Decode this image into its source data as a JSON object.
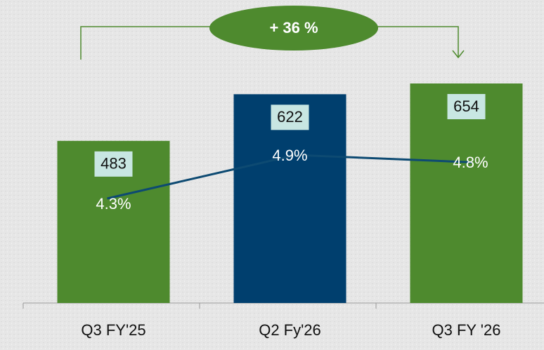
{
  "chart_data": {
    "type": "bar",
    "categories": [
      "Q3 FY'25",
      "Q2 Fy'26",
      "Q3 FY '26"
    ],
    "series": [
      {
        "name": "bars",
        "colors": [
          "#4e8a2e",
          "#003f6e",
          "#4e8a2e"
        ],
        "values": [
          483,
          622,
          654
        ]
      },
      {
        "name": "line",
        "type": "line",
        "color": "#0d4a72",
        "values": [
          4.3,
          4.9,
          4.8
        ],
        "value_labels": [
          "4.3%",
          "4.9%",
          "4.8%"
        ]
      }
    ],
    "annotation": "+ 36 %",
    "annotation_color": "#4e8a2e",
    "label_box_color": "#c8e6e2"
  }
}
